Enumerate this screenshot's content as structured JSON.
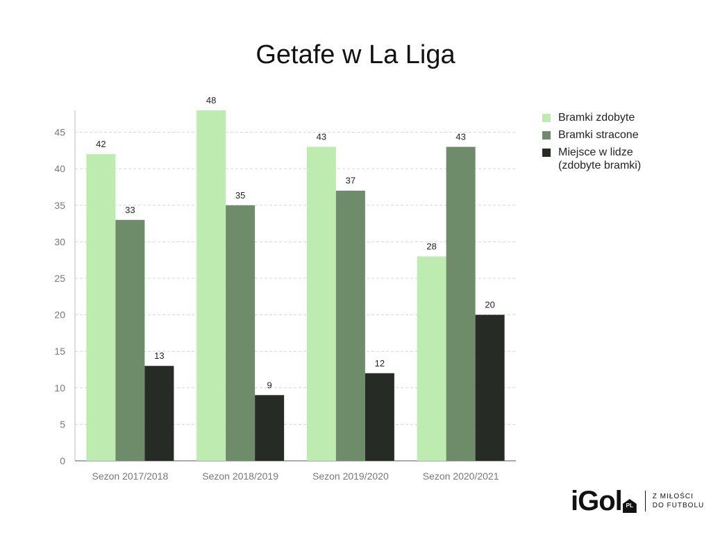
{
  "chart_data": {
    "type": "bar",
    "title": "Getafe w La Liga",
    "categories": [
      "Sezon 2017/2018",
      "Sezon 2018/2019",
      "Sezon 2019/2020",
      "Sezon 2020/2021"
    ],
    "series": [
      {
        "name": "Bramki zdobyte",
        "values": [
          42,
          48,
          43,
          28
        ],
        "color": "#bdebb0"
      },
      {
        "name": "Bramki stracone",
        "values": [
          33,
          35,
          37,
          43
        ],
        "color": "#6e8c6a"
      },
      {
        "name": "Miejsce w lidze\n(zdobyte bramki)",
        "values": [
          13,
          9,
          12,
          20
        ],
        "color": "#262b26"
      }
    ],
    "ylim": [
      0,
      48
    ],
    "yticks": [
      0,
      5,
      10,
      15,
      20,
      25,
      30,
      35,
      40,
      45
    ],
    "grid": true,
    "legend_position": "right",
    "xlabel": "",
    "ylabel": ""
  },
  "logo": {
    "wordmark": "iGol",
    "badge": "PL",
    "tagline": "Z MIŁOŚCI\nDO FUTBOLU"
  }
}
